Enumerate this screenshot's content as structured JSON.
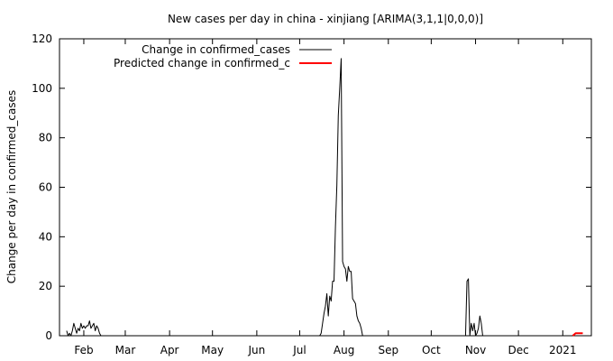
{
  "chart_data": {
    "type": "line",
    "title": "New cases per day in china - xinjiang [ARIMA(3,1,1|0,0,0)]",
    "xlabel": "",
    "ylabel": "Change per day in confirmed_cases",
    "ylim": [
      0,
      120
    ],
    "xlim": [
      "2020-01-15",
      "2021-01-21"
    ],
    "grid": false,
    "legend_position": "top-left",
    "x_ticks": [
      {
        "label": "Feb",
        "date": "2020-02-01"
      },
      {
        "label": "Mar",
        "date": "2020-03-01"
      },
      {
        "label": "Apr",
        "date": "2020-04-01"
      },
      {
        "label": "May",
        "date": "2020-05-01"
      },
      {
        "label": "Jun",
        "date": "2020-06-01"
      },
      {
        "label": "Jul",
        "date": "2020-07-01"
      },
      {
        "label": "Aug",
        "date": "2020-08-01"
      },
      {
        "label": "Sep",
        "date": "2020-09-01"
      },
      {
        "label": "Oct",
        "date": "2020-10-01"
      },
      {
        "label": "Nov",
        "date": "2020-11-01"
      },
      {
        "label": "Dec",
        "date": "2020-12-01"
      },
      {
        "label": "2021",
        "date": "2021-01-01"
      }
    ],
    "y_ticks": [
      0,
      20,
      40,
      60,
      80,
      100,
      120
    ],
    "series": [
      {
        "name": "Change in confirmed_cases",
        "color": "#000000",
        "points": [
          [
            "2020-01-20",
            2
          ],
          [
            "2020-01-21",
            0
          ],
          [
            "2020-01-22",
            1
          ],
          [
            "2020-01-23",
            0
          ],
          [
            "2020-01-24",
            2
          ],
          [
            "2020-01-25",
            5
          ],
          [
            "2020-01-26",
            3
          ],
          [
            "2020-01-27",
            1
          ],
          [
            "2020-01-28",
            3
          ],
          [
            "2020-01-29",
            2
          ],
          [
            "2020-01-30",
            5
          ],
          [
            "2020-01-31",
            3
          ],
          [
            "2020-02-01",
            4
          ],
          [
            "2020-02-02",
            3
          ],
          [
            "2020-02-03",
            4
          ],
          [
            "2020-02-04",
            4
          ],
          [
            "2020-02-05",
            6
          ],
          [
            "2020-02-06",
            3
          ],
          [
            "2020-02-07",
            4
          ],
          [
            "2020-02-08",
            5
          ],
          [
            "2020-02-09",
            2
          ],
          [
            "2020-02-10",
            4
          ],
          [
            "2020-02-11",
            3
          ],
          [
            "2020-02-12",
            1
          ],
          [
            "2020-02-13",
            0
          ],
          [
            "2020-07-15",
            0
          ],
          [
            "2020-07-16",
            1
          ],
          [
            "2020-07-17",
            5
          ],
          [
            "2020-07-18",
            9
          ],
          [
            "2020-07-19",
            12
          ],
          [
            "2020-07-20",
            17
          ],
          [
            "2020-07-21",
            8
          ],
          [
            "2020-07-22",
            16
          ],
          [
            "2020-07-23",
            14
          ],
          [
            "2020-07-24",
            22
          ],
          [
            "2020-07-25",
            22
          ],
          [
            "2020-07-26",
            44
          ],
          [
            "2020-07-27",
            61
          ],
          [
            "2020-07-28",
            89
          ],
          [
            "2020-07-29",
            100
          ],
          [
            "2020-07-30",
            112
          ],
          [
            "2020-07-31",
            30
          ],
          [
            "2020-08-01",
            28
          ],
          [
            "2020-08-02",
            27
          ],
          [
            "2020-08-03",
            22
          ],
          [
            "2020-08-04",
            28
          ],
          [
            "2020-08-05",
            26
          ],
          [
            "2020-08-06",
            26
          ],
          [
            "2020-08-07",
            15
          ],
          [
            "2020-08-08",
            14
          ],
          [
            "2020-08-09",
            13
          ],
          [
            "2020-08-10",
            8
          ],
          [
            "2020-08-11",
            6
          ],
          [
            "2020-08-12",
            5
          ],
          [
            "2020-08-13",
            3
          ],
          [
            "2020-08-14",
            0
          ],
          [
            "2020-10-25",
            0
          ],
          [
            "2020-10-26",
            22
          ],
          [
            "2020-10-27",
            23
          ],
          [
            "2020-10-28",
            0
          ],
          [
            "2020-10-29",
            5
          ],
          [
            "2020-10-30",
            2
          ],
          [
            "2020-10-31",
            5
          ],
          [
            "2020-11-01",
            0
          ],
          [
            "2020-11-02",
            1
          ],
          [
            "2020-11-03",
            3
          ],
          [
            "2020-11-04",
            8
          ],
          [
            "2020-11-05",
            5
          ],
          [
            "2020-11-06",
            0
          ]
        ]
      },
      {
        "name": "Predicted change in confirmed_c",
        "color": "#ff0000",
        "points": [
          [
            "2021-01-08",
            0
          ],
          [
            "2021-01-10",
            1
          ],
          [
            "2021-01-12",
            1
          ],
          [
            "2021-01-15",
            1
          ]
        ]
      }
    ]
  }
}
